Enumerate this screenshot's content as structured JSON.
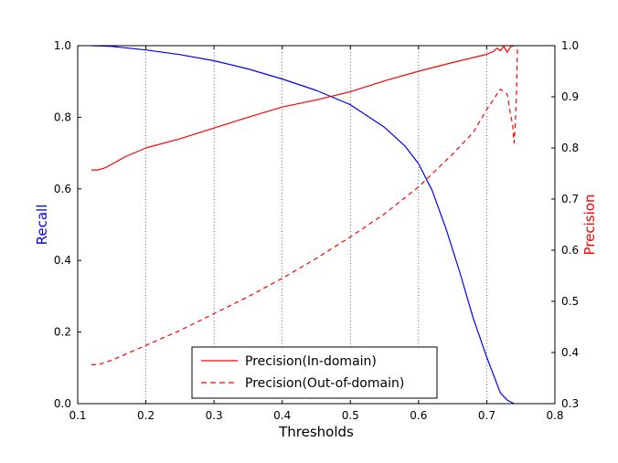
{
  "chart_data": {
    "type": "line",
    "xlabel": "Thresholds",
    "ylabel_left": "Recall",
    "ylabel_right": "Precision",
    "xlim": [
      0.1,
      0.8
    ],
    "ylim_left": [
      0.0,
      1.0
    ],
    "ylim_right": [
      0.3,
      1.0
    ],
    "x_ticks": [
      "0.1",
      "0.2",
      "0.3",
      "0.4",
      "0.5",
      "0.6",
      "0.7",
      "0.8"
    ],
    "y_left_ticks": [
      "0.0",
      "0.2",
      "0.4",
      "0.6",
      "0.8",
      "1.0"
    ],
    "y_right_ticks": [
      "0.3",
      "0.4",
      "0.5",
      "0.6",
      "0.7",
      "0.8",
      "0.9",
      "1.0"
    ],
    "grid": "vertical-dotted-at-major-x",
    "legend_position": "bottom-center",
    "colors": {
      "recall": "#0000ff",
      "precision": "#ff0000"
    },
    "series": [
      {
        "axis": "left",
        "style": "solid",
        "color": "#0000ff",
        "points": [
          [
            0.12,
            1.0
          ],
          [
            0.15,
            0.998
          ],
          [
            0.2,
            0.988
          ],
          [
            0.25,
            0.975
          ],
          [
            0.3,
            0.958
          ],
          [
            0.35,
            0.935
          ],
          [
            0.4,
            0.907
          ],
          [
            0.45,
            0.875
          ],
          [
            0.5,
            0.835
          ],
          [
            0.55,
            0.772
          ],
          [
            0.58,
            0.72
          ],
          [
            0.6,
            0.67
          ],
          [
            0.62,
            0.595
          ],
          [
            0.64,
            0.49
          ],
          [
            0.66,
            0.37
          ],
          [
            0.68,
            0.24
          ],
          [
            0.7,
            0.13
          ],
          [
            0.72,
            0.03
          ],
          [
            0.73,
            0.01
          ],
          [
            0.74,
            0.0
          ]
        ]
      },
      {
        "name": "Precision(In-domain)",
        "axis": "right",
        "style": "solid",
        "color": "#ff0000",
        "points": [
          [
            0.12,
            0.757
          ],
          [
            0.13,
            0.757
          ],
          [
            0.14,
            0.761
          ],
          [
            0.15,
            0.768
          ],
          [
            0.17,
            0.783
          ],
          [
            0.2,
            0.8
          ],
          [
            0.25,
            0.818
          ],
          [
            0.3,
            0.839
          ],
          [
            0.35,
            0.86
          ],
          [
            0.4,
            0.88
          ],
          [
            0.45,
            0.894
          ],
          [
            0.5,
            0.91
          ],
          [
            0.55,
            0.931
          ],
          [
            0.6,
            0.95
          ],
          [
            0.65,
            0.967
          ],
          [
            0.7,
            0.983
          ],
          [
            0.71,
            0.989
          ],
          [
            0.715,
            0.995
          ],
          [
            0.72,
            0.99
          ],
          [
            0.725,
            0.999
          ],
          [
            0.73,
            0.987
          ],
          [
            0.735,
            0.998
          ],
          [
            0.74,
            1.0
          ]
        ]
      },
      {
        "name": "Precision(Out-of-domain)",
        "axis": "right",
        "style": "dashed",
        "color": "#ff0000",
        "points": [
          [
            0.12,
            0.376
          ],
          [
            0.13,
            0.376
          ],
          [
            0.15,
            0.385
          ],
          [
            0.2,
            0.414
          ],
          [
            0.25,
            0.443
          ],
          [
            0.3,
            0.476
          ],
          [
            0.35,
            0.509
          ],
          [
            0.4,
            0.545
          ],
          [
            0.45,
            0.584
          ],
          [
            0.5,
            0.626
          ],
          [
            0.55,
            0.671
          ],
          [
            0.6,
            0.724
          ],
          [
            0.65,
            0.788
          ],
          [
            0.68,
            0.83
          ],
          [
            0.7,
            0.875
          ],
          [
            0.71,
            0.895
          ],
          [
            0.72,
            0.915
          ],
          [
            0.725,
            0.91
          ],
          [
            0.73,
            0.905
          ],
          [
            0.735,
            0.865
          ],
          [
            0.738,
            0.845
          ],
          [
            0.74,
            0.81
          ],
          [
            0.742,
            0.85
          ],
          [
            0.744,
            0.92
          ],
          [
            0.745,
            0.995
          ],
          [
            0.746,
            1.0
          ]
        ]
      }
    ]
  }
}
